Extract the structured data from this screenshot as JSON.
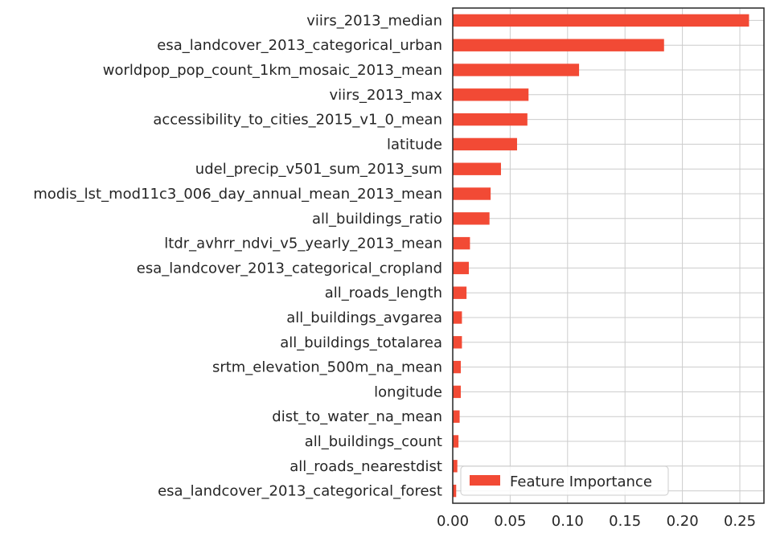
{
  "chart_data": {
    "type": "bar",
    "orientation": "horizontal",
    "categories": [
      "viirs_2013_median",
      "esa_landcover_2013_categorical_urban",
      "worldpop_pop_count_1km_mosaic_2013_mean",
      "viirs_2013_max",
      "accessibility_to_cities_2015_v1_0_mean",
      "latitude",
      "udel_precip_v501_sum_2013_sum",
      "modis_lst_mod11c3_006_day_annual_mean_2013_mean",
      "all_buildings_ratio",
      "ltdr_avhrr_ndvi_v5_yearly_2013_mean",
      "esa_landcover_2013_categorical_cropland",
      "all_roads_length",
      "all_buildings_avgarea",
      "all_buildings_totalarea",
      "srtm_elevation_500m_na_mean",
      "longitude",
      "dist_to_water_na_mean",
      "all_buildings_count",
      "all_roads_nearestdist",
      "esa_landcover_2013_categorical_forest"
    ],
    "series": [
      {
        "name": "Feature Importance",
        "color": "#f24a35",
        "values": [
          0.258,
          0.184,
          0.11,
          0.066,
          0.065,
          0.056,
          0.042,
          0.033,
          0.032,
          0.015,
          0.014,
          0.012,
          0.008,
          0.008,
          0.007,
          0.007,
          0.006,
          0.005,
          0.004,
          0.003
        ]
      }
    ],
    "xlim": [
      0,
      0.271
    ],
    "xticks": [
      0.0,
      0.05,
      0.1,
      0.15,
      0.2,
      0.25
    ],
    "xtick_labels": [
      "0.00",
      "0.05",
      "0.10",
      "0.15",
      "0.20",
      "0.25"
    ],
    "title": "",
    "xlabel": "",
    "ylabel": "",
    "grid": true,
    "legend": {
      "position": "lower-right",
      "labels": [
        "Feature Importance"
      ]
    },
    "colors": {
      "grid": "#cccccc",
      "frame": "#262626",
      "text": "#262626"
    }
  }
}
